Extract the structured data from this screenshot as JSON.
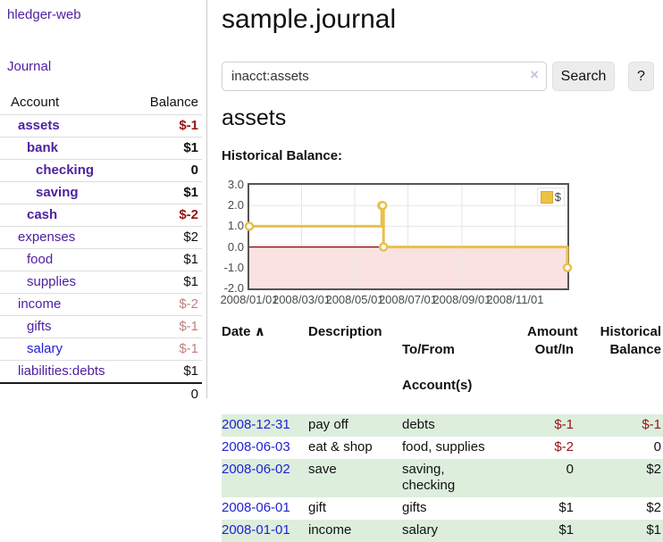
{
  "app": {
    "brand": "hledger-web",
    "nav_journal": "Journal"
  },
  "sidebar": {
    "accounts_table": {
      "headers": {
        "account": "Account",
        "balance": "Balance"
      },
      "rows": [
        {
          "name": "assets",
          "balance": "$-1",
          "indent": 1,
          "bold": true,
          "balance_style": "neg-strong"
        },
        {
          "name": "bank",
          "balance": "$1",
          "indent": 2,
          "bold": true,
          "balance_style": "pos"
        },
        {
          "name": "checking",
          "balance": "0",
          "indent": 3,
          "bold": true,
          "balance_style": "pos"
        },
        {
          "name": "saving",
          "balance": "$1",
          "indent": 3,
          "bold": true,
          "balance_style": "pos"
        },
        {
          "name": "cash",
          "balance": "$-2",
          "indent": 2,
          "bold": true,
          "balance_style": "neg-strong"
        },
        {
          "name": "expenses",
          "balance": "$2",
          "indent": 1,
          "bold": false,
          "balance_style": "pos"
        },
        {
          "name": "food",
          "balance": "$1",
          "indent": 2,
          "bold": false,
          "balance_style": "pos"
        },
        {
          "name": "supplies",
          "balance": "$1",
          "indent": 2,
          "bold": false,
          "balance_style": "pos"
        },
        {
          "name": "income",
          "balance": "$-2",
          "indent": 1,
          "bold": false,
          "balance_style": "neg-soft"
        },
        {
          "name": "gifts",
          "balance": "$-1",
          "indent": 2,
          "bold": false,
          "balance_style": "neg-soft"
        },
        {
          "name": "salary",
          "balance": "$-1",
          "indent": 2,
          "bold": false,
          "balance_style": "neg-soft",
          "link_style": "unvisited"
        },
        {
          "name": "liabilities:debts",
          "balance": "$1",
          "indent": 1,
          "bold": false,
          "balance_style": "pos"
        }
      ],
      "total": "0"
    }
  },
  "header": {
    "title": "sample.journal"
  },
  "search": {
    "query": "inacct:assets",
    "clear_icon": "×",
    "search_button": "Search",
    "help_button": "?"
  },
  "account_page": {
    "heading": "assets",
    "chart_label": "Historical Balance:"
  },
  "chart_data": {
    "type": "line",
    "style": "step",
    "title": "Historical Balance",
    "legend": "$",
    "legend_position": "top-right",
    "series": [
      {
        "name": "$",
        "points": [
          [
            "2008-01-01",
            1
          ],
          [
            "2008-06-01",
            2
          ],
          [
            "2008-06-02",
            2
          ],
          [
            "2008-06-03",
            0
          ],
          [
            "2008-12-31",
            -1
          ]
        ]
      }
    ],
    "xlim": [
      "2008-01-01",
      "2008-12-31"
    ],
    "ylim": [
      -2,
      3
    ],
    "x_ticks": [
      "2008/01/01",
      "2008/03/01",
      "2008/05/01",
      "2008/07/01",
      "2008/09/01",
      "2008/11/01"
    ],
    "y_ticks": [
      "3.0",
      "2.0",
      "1.0",
      "0.0",
      "-1.0",
      "-2.0"
    ],
    "grid": true,
    "negative_region_shaded": true,
    "colors": {
      "line": "#e9c04b",
      "marker_fill": "#ffffff",
      "negative_fill": "#fbe2e2",
      "zero_line": "#8b0000",
      "grid": "#e6e6e6",
      "border": "#545454"
    }
  },
  "register": {
    "headers": {
      "date": "Date",
      "sort_icon": "∧",
      "description": "Description",
      "account_line1": "To/From",
      "account_line2": "Account(s)",
      "amount_line1": "Amount",
      "amount_line2": "Out/In",
      "balance_line1": "Historical",
      "balance_line2": "Balance"
    },
    "rows": [
      {
        "date": "2008-12-31",
        "description": "pay off",
        "accounts": "debts",
        "amount": "$-1",
        "amount_neg": true,
        "balance": "$-1",
        "balance_neg": true
      },
      {
        "date": "2008-06-03",
        "description": "eat & shop",
        "accounts": "food, supplies",
        "amount": "$-2",
        "amount_neg": true,
        "balance": "0",
        "balance_neg": false
      },
      {
        "date": "2008-06-02",
        "description": "save",
        "accounts": "saving,\nchecking",
        "amount": "0",
        "amount_neg": false,
        "balance": "$2",
        "balance_neg": false
      },
      {
        "date": "2008-06-01",
        "description": "gift",
        "accounts": "gifts",
        "amount": "$1",
        "amount_neg": false,
        "balance": "$2",
        "balance_neg": false
      },
      {
        "date": "2008-01-01",
        "description": "income",
        "accounts": "salary",
        "amount": "$1",
        "amount_neg": false,
        "balance": "$1",
        "balance_neg": false
      }
    ]
  }
}
